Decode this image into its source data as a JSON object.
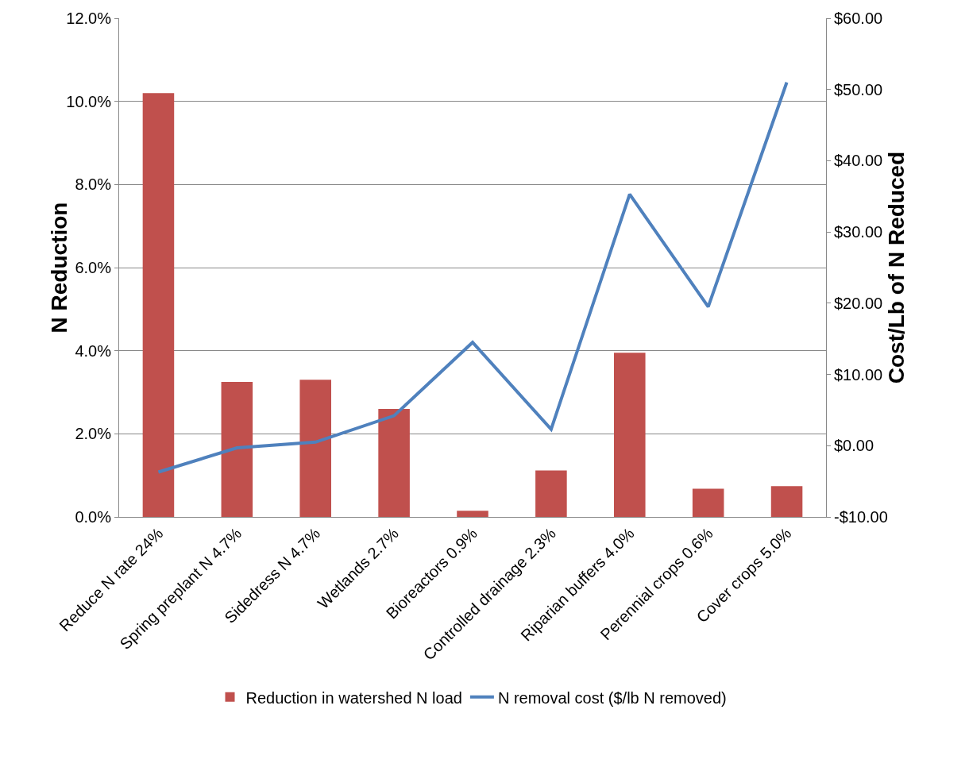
{
  "chart_data": {
    "type": "bar",
    "ylabel": "N Reduction",
    "y2label": "Cost/Lb of N Reduced",
    "categories": [
      "Reduce N rate 24%",
      "Spring preplant N 4.7%",
      "Sidedress N 4.7%",
      "Wetlands 2.7%",
      "Bioreactors 0.9%",
      "Controlled drainage 2.3%",
      "Riparian buffers 4.0%",
      "Perennial crops 0.6%",
      "Cover crops 5.0%"
    ],
    "series": [
      {
        "name": "Reduction in watershed N load",
        "color": "#c0504d",
        "values": [
          10.2,
          3.25,
          3.3,
          2.6,
          0.15,
          1.12,
          3.95,
          0.68,
          0.74
        ]
      },
      {
        "name": "N removal cost ($/lb N removed)",
        "type": "line",
        "axis": "y2",
        "color": "#4f81bd",
        "values": [
          -3.7,
          -0.3,
          0.5,
          4.2,
          14.5,
          2.3,
          35.3,
          19.5,
          51
        ]
      }
    ],
    "ylim": [
      0,
      12
    ],
    "yticks": [
      {
        "value": 0,
        "label": "0.0%"
      },
      {
        "value": 2,
        "label": "2.0%"
      },
      {
        "value": 4,
        "label": "4.0%"
      },
      {
        "value": 6,
        "label": "6.0%"
      },
      {
        "value": 8,
        "label": "8.0%"
      },
      {
        "value": 10,
        "label": "10.0%"
      },
      {
        "value": 12,
        "label": "12.0%"
      }
    ],
    "y2lim": [
      -10,
      60
    ],
    "y2ticks": [
      {
        "value": -10,
        "label": "-$10.00"
      },
      {
        "value": 0,
        "label": "$0.00"
      },
      {
        "value": 10,
        "label": "$10.00"
      },
      {
        "value": 20,
        "label": "$20.00"
      },
      {
        "value": 30,
        "label": "$30.00"
      },
      {
        "value": 40,
        "label": "$40.00"
      },
      {
        "value": 50,
        "label": "$50.00"
      },
      {
        "value": 60,
        "label": "$60.00"
      }
    ],
    "grid": "y",
    "legend": "bottom",
    "marker": "none",
    "line_style": "solid"
  }
}
